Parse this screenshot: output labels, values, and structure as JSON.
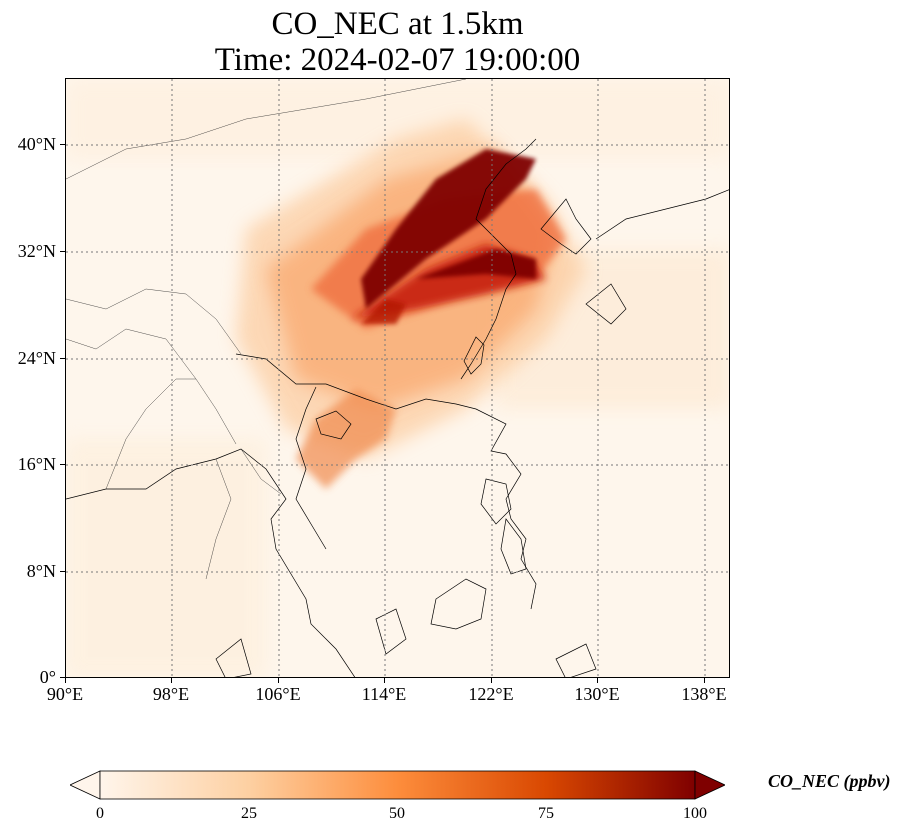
{
  "title_line1": "CO_NEC at 1.5km",
  "title_line2": "Time: 2024-02-07 19:00:00",
  "lat_labels": [
    "40°N",
    "32°N",
    "24°N",
    "16°N",
    "8°N",
    "0°"
  ],
  "lon_labels": [
    "90°E",
    "98°E",
    "106°E",
    "114°E",
    "122°E",
    "130°E",
    "138°E"
  ],
  "colorbar": {
    "label": "CO_NEC (ppbv)",
    "ticks": [
      "0",
      "25",
      "50",
      "75",
      "100"
    ],
    "colormap": [
      "#fff5eb",
      "#fdd0a2",
      "#fd8d3c",
      "#d94801",
      "#7f0000"
    ],
    "extend": "both"
  },
  "map": {
    "projection": "PlateCarree",
    "lon_range": [
      90,
      140
    ],
    "lat_range": [
      0,
      45
    ],
    "gridlines": "dotted",
    "hotspot_color": "#800000"
  }
}
